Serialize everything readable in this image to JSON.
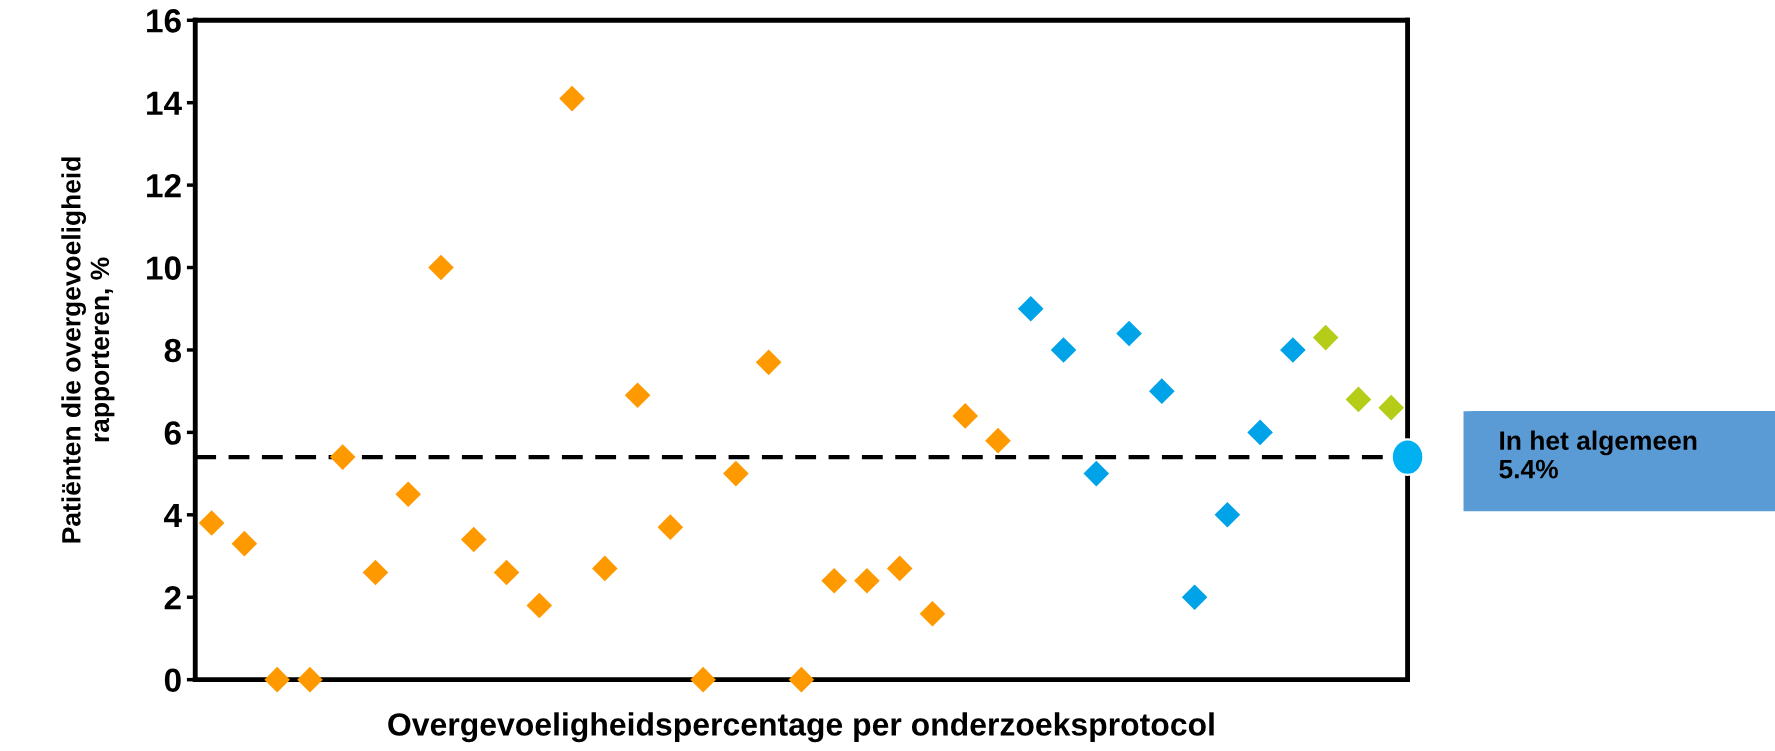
{
  "chart_data": {
    "type": "scatter",
    "xlabel": "Overgevoeligheidspercentage per onderzoeksprotocol",
    "ylabel": "Patiënten die overgevoeligheid\nrapporteren, %",
    "categories": [
      null,
      null,
      null,
      null,
      null,
      null,
      null,
      null,
      null,
      null,
      null,
      null,
      null,
      null,
      null,
      null,
      null,
      null,
      null,
      null,
      null,
      null,
      null,
      null,
      null,
      null,
      null,
      null,
      null,
      null,
      null,
      null,
      null,
      null,
      null,
      null,
      null
    ],
    "series": [
      {
        "color": "#ff9900",
        "values": [
          3.8,
          3.3,
          0,
          0,
          5.4,
          2.6,
          4.5,
          10.0,
          3.4,
          2.6,
          1.8,
          14.1,
          2.7,
          6.9,
          3.7,
          0,
          5.0,
          7.7,
          0,
          2.4,
          2.4,
          2.7,
          1.6,
          6.4,
          5.8,
          null,
          null,
          null,
          null,
          null,
          null,
          null,
          null,
          null,
          null,
          null,
          null
        ]
      },
      {
        "color": "#00a2e8",
        "values": [
          null,
          null,
          null,
          null,
          null,
          null,
          null,
          null,
          null,
          null,
          null,
          null,
          null,
          null,
          null,
          null,
          null,
          null,
          null,
          null,
          null,
          null,
          null,
          null,
          null,
          9.0,
          8.0,
          5.0,
          8.4,
          7.0,
          2.0,
          4.0,
          6.0,
          8.0,
          null,
          null,
          null
        ]
      },
      {
        "color": "#b5cc18",
        "values": [
          null,
          null,
          null,
          null,
          null,
          null,
          null,
          null,
          null,
          null,
          null,
          null,
          null,
          null,
          null,
          null,
          null,
          null,
          null,
          null,
          null,
          null,
          null,
          null,
          null,
          null,
          null,
          null,
          null,
          null,
          null,
          null,
          null,
          null,
          8.3,
          6.8,
          6.6
        ]
      }
    ],
    "ylim": [
      0,
      16
    ],
    "yticks": [
      0,
      2,
      4,
      6,
      8,
      10,
      12,
      14,
      16
    ],
    "marker": "diamond",
    "grid": false,
    "legend": false,
    "ref_lines": [
      {
        "axis": "y",
        "value": 5.4,
        "label": "In het algemeen\n5.4%",
        "color": "#000000",
        "line_style": "dashed"
      }
    ]
  }
}
